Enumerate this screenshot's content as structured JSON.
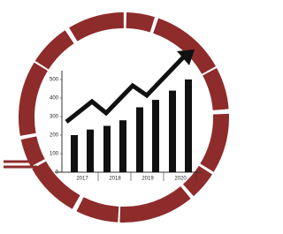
{
  "chart_data": {
    "type": "bar",
    "categories": [
      "2017",
      "2018",
      "2019",
      "2020"
    ],
    "series": [
      {
        "color": "#111111",
        "values": [
          200,
          250,
          350,
          440
        ]
      },
      {
        "color": "#111111",
        "values": [
          230,
          280,
          390,
          500
        ]
      }
    ],
    "ylim": [
      0,
      500
    ],
    "yticks": [
      0,
      100,
      200,
      300,
      400,
      500
    ]
  }
}
